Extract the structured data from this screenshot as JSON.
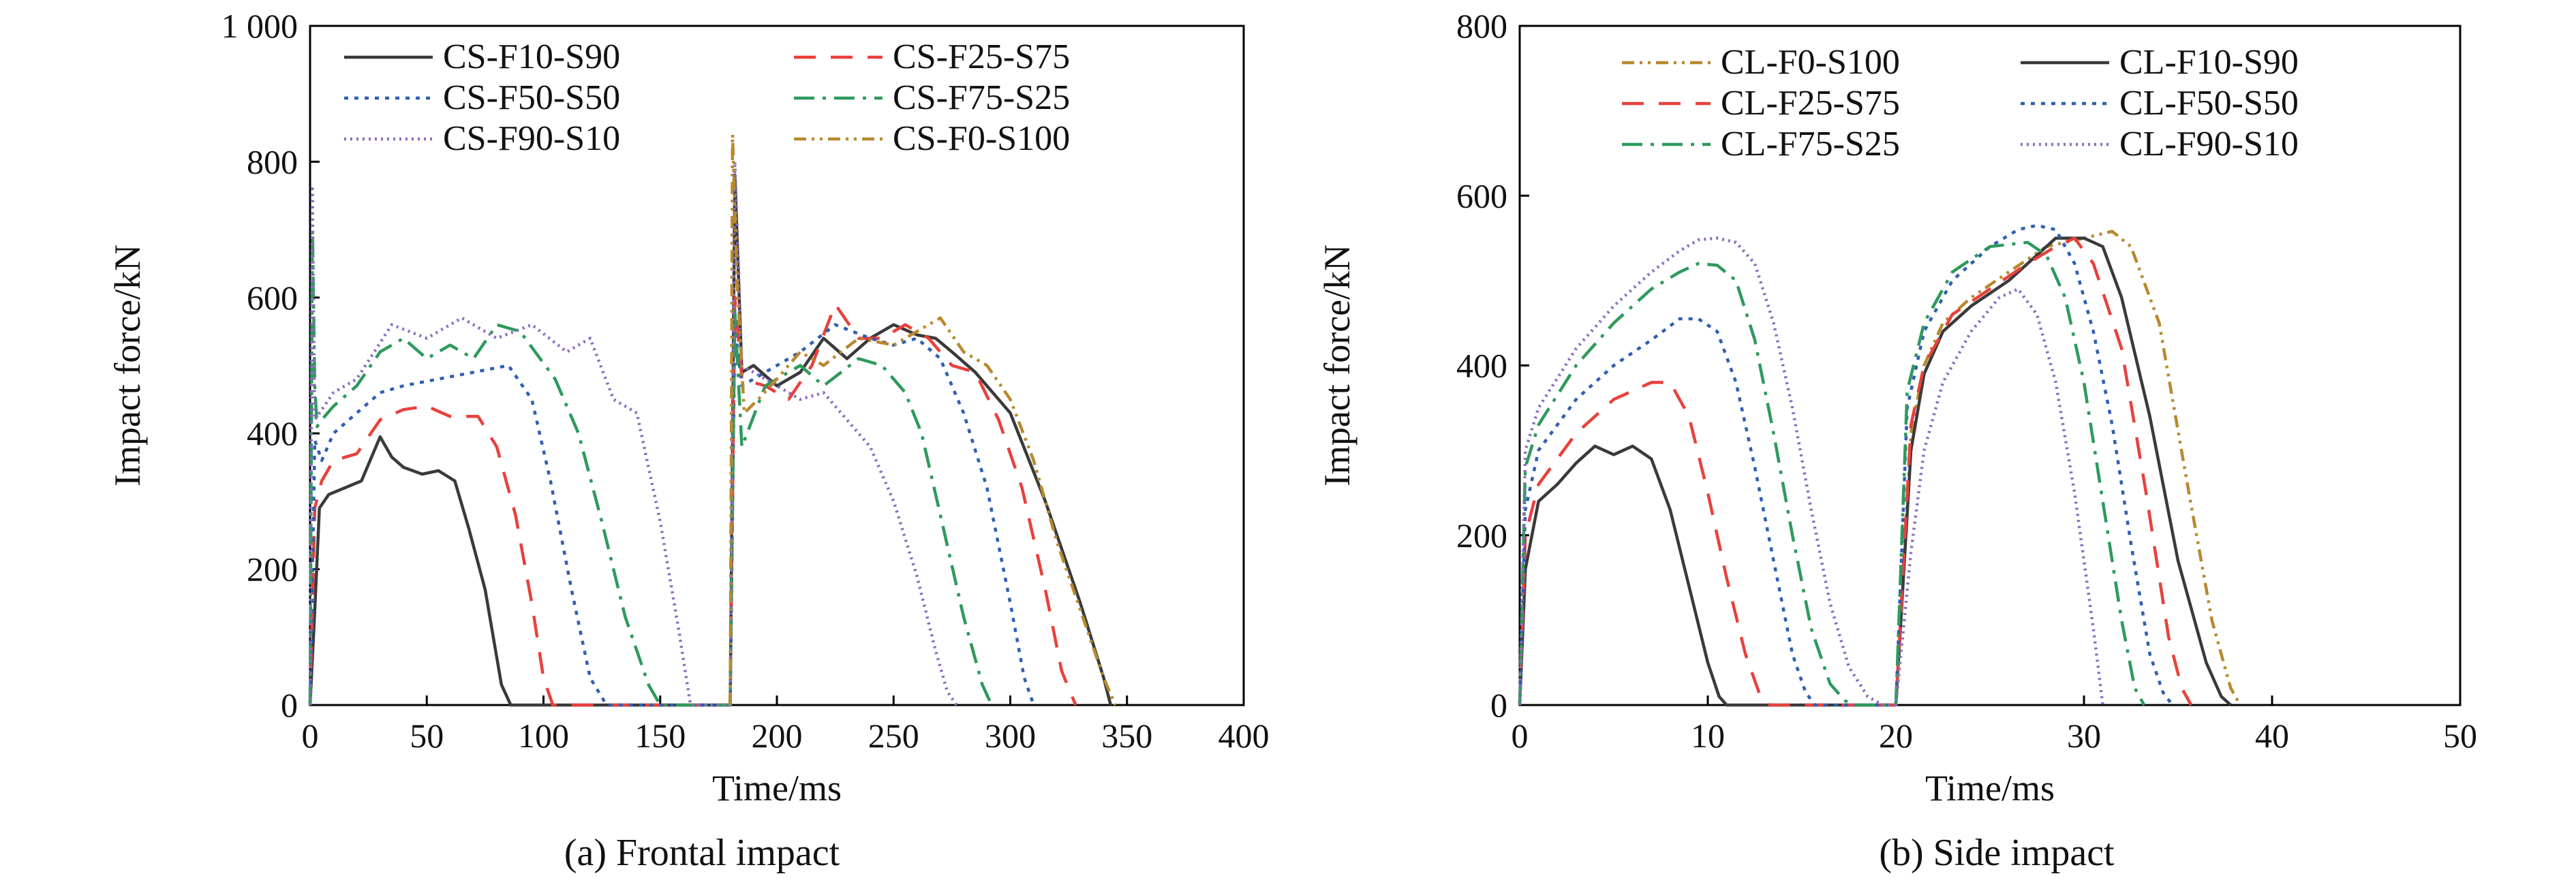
{
  "chart_data": [
    {
      "type": "line",
      "caption": "(a) Frontal impact",
      "xlabel": "Time/ms",
      "ylabel": "Impact force/kN",
      "xlim": [
        0,
        400
      ],
      "ylim": [
        0,
        1000
      ],
      "xticks": [
        0,
        50,
        100,
        150,
        200,
        250,
        300,
        350,
        400
      ],
      "yticks": [
        0,
        200,
        400,
        600,
        800,
        1000
      ],
      "ytick_labels": [
        "0",
        "200",
        "400",
        "600",
        "800",
        "1 000"
      ],
      "grid": false,
      "legend_position": "top",
      "legend_columns": 2,
      "series": [
        {
          "name": "CS-F10-S90",
          "color": "#3a3a3a",
          "dash": "solid",
          "x": [
            0,
            2,
            4,
            8,
            15,
            22,
            30,
            35,
            40,
            48,
            55,
            62,
            68,
            75,
            82,
            86,
            180,
            182,
            185,
            190,
            200,
            210,
            220,
            230,
            240,
            250,
            260,
            268,
            275,
            285,
            300,
            315,
            330,
            340,
            343
          ],
          "y": [
            0,
            140,
            290,
            310,
            320,
            330,
            395,
            365,
            350,
            340,
            345,
            330,
            260,
            170,
            30,
            0,
            0,
            780,
            490,
            500,
            470,
            490,
            540,
            510,
            540,
            560,
            545,
            540,
            520,
            490,
            430,
            300,
            150,
            40,
            0
          ]
        },
        {
          "name": "CS-F25-S75",
          "color": "#e8413c",
          "dash": "long-dash",
          "x": [
            0,
            2,
            5,
            10,
            20,
            30,
            40,
            50,
            60,
            72,
            80,
            88,
            95,
            100,
            104,
            180,
            182,
            185,
            195,
            205,
            215,
            225,
            235,
            245,
            255,
            265,
            275,
            285,
            295,
            305,
            315,
            322,
            328
          ],
          "y": [
            0,
            290,
            330,
            360,
            370,
            420,
            435,
            440,
            425,
            425,
            380,
            280,
            150,
            40,
            0,
            0,
            600,
            480,
            470,
            450,
            500,
            590,
            540,
            540,
            560,
            540,
            500,
            490,
            420,
            320,
            170,
            50,
            0
          ]
        },
        {
          "name": "CS-F50-S50",
          "color": "#2f5fb3",
          "dash": "dotted",
          "x": [
            0,
            2,
            5,
            10,
            20,
            30,
            40,
            55,
            70,
            85,
            95,
            103,
            112,
            120,
            127,
            180,
            182,
            185,
            195,
            210,
            225,
            240,
            250,
            260,
            270,
            280,
            290,
            300,
            306,
            310
          ],
          "y": [
            0,
            390,
            360,
            400,
            430,
            460,
            470,
            480,
            490,
            500,
            450,
            330,
            170,
            40,
            0,
            0,
            560,
            470,
            490,
            520,
            560,
            540,
            530,
            540,
            510,
            430,
            320,
            150,
            40,
            0
          ]
        },
        {
          "name": "CS-F75-S25",
          "color": "#2e9a5c",
          "dash": "dash-dot",
          "x": [
            0,
            1,
            2,
            3,
            5,
            10,
            20,
            30,
            40,
            50,
            60,
            70,
            80,
            90,
            105,
            115,
            125,
            135,
            145,
            150,
            180,
            182,
            185,
            195,
            210,
            220,
            235,
            245,
            255,
            262,
            270,
            280,
            288,
            292
          ],
          "y": [
            0,
            700,
            470,
            410,
            420,
            440,
            470,
            520,
            540,
            510,
            530,
            510,
            560,
            550,
            480,
            400,
            270,
            130,
            30,
            0,
            0,
            580,
            380,
            470,
            500,
            470,
            510,
            500,
            460,
            400,
            280,
            130,
            30,
            0
          ]
        },
        {
          "name": "CS-F90-S10",
          "color": "#8c6dbf",
          "dash": "fine-dot",
          "x": [
            0,
            1,
            2,
            4,
            10,
            20,
            35,
            50,
            65,
            80,
            95,
            110,
            120,
            130,
            140,
            150,
            158,
            163,
            180,
            182,
            185,
            195,
            210,
            220,
            230,
            240,
            250,
            260,
            268,
            273,
            277
          ],
          "y": [
            0,
            760,
            420,
            430,
            460,
            480,
            560,
            540,
            570,
            540,
            560,
            520,
            540,
            450,
            430,
            270,
            110,
            0,
            0,
            800,
            500,
            480,
            450,
            460,
            420,
            380,
            300,
            190,
            80,
            20,
            0
          ]
        },
        {
          "name": "CS-F0-S100",
          "color": "#b8892e",
          "dash": "dash-dot-dot",
          "x": [
            180,
            181,
            183,
            186,
            192,
            200,
            210,
            220,
            235,
            250,
            260,
            270,
            280,
            290,
            300,
            310,
            320,
            330,
            340,
            345
          ],
          "y": [
            0,
            840,
            620,
            430,
            450,
            480,
            520,
            500,
            540,
            530,
            550,
            570,
            520,
            500,
            450,
            360,
            240,
            140,
            40,
            0
          ]
        }
      ]
    },
    {
      "type": "line",
      "caption": "(b) Side impact",
      "xlabel": "Time/ms",
      "ylabel": "Impact force/kN",
      "xlim": [
        0,
        50
      ],
      "ylim": [
        0,
        800
      ],
      "xticks": [
        0,
        10,
        20,
        30,
        40,
        50
      ],
      "yticks": [
        0,
        200,
        400,
        600,
        800
      ],
      "ytick_labels": [
        "0",
        "200",
        "400",
        "600",
        "800"
      ],
      "grid": false,
      "legend_position": "top",
      "legend_columns": 2,
      "series": [
        {
          "name": "CL-F0-S100",
          "color": "#b8892e",
          "dash": "dash-dot-dot",
          "x": [
            20,
            20.8,
            21.5,
            22.5,
            24,
            26,
            28,
            30,
            31.5,
            32.5,
            34,
            35.5,
            36.8,
            37.8,
            38.3
          ],
          "y": [
            0,
            320,
            400,
            450,
            480,
            510,
            540,
            550,
            558,
            540,
            450,
            260,
            100,
            20,
            0
          ]
        },
        {
          "name": "CL-F10-S90",
          "color": "#3a3a3a",
          "dash": "solid",
          "x": [
            0,
            0.3,
            1,
            2,
            3,
            4,
            5,
            6,
            7,
            8,
            9,
            10,
            10.6,
            11,
            20,
            20.8,
            21.5,
            22.5,
            24,
            26,
            27.5,
            28.5,
            30,
            31,
            32,
            33.5,
            35,
            36.5,
            37.3,
            37.8
          ],
          "y": [
            0,
            160,
            240,
            260,
            285,
            305,
            295,
            305,
            290,
            230,
            140,
            50,
            10,
            0,
            0,
            300,
            390,
            440,
            470,
            500,
            530,
            550,
            550,
            540,
            480,
            340,
            170,
            50,
            10,
            0
          ]
        },
        {
          "name": "CL-F25-S75",
          "color": "#e8413c",
          "dash": "long-dash",
          "x": [
            0,
            0.3,
            1,
            3,
            5,
            7,
            8,
            9,
            10,
            11,
            12,
            12.8,
            13.3,
            20,
            20.8,
            21.5,
            23,
            25,
            27,
            28.5,
            29.5,
            30.5,
            32,
            33.3,
            34.5,
            35.2,
            35.7
          ],
          "y": [
            0,
            200,
            260,
            320,
            360,
            380,
            380,
            340,
            250,
            150,
            60,
            10,
            0,
            0,
            330,
            400,
            460,
            490,
            520,
            540,
            550,
            520,
            420,
            250,
            80,
            20,
            0
          ]
        },
        {
          "name": "CL-F50-S50",
          "color": "#2f5fb3",
          "dash": "dotted",
          "x": [
            0,
            0.3,
            1,
            3,
            5,
            7,
            8.5,
            9.5,
            10.5,
            11.5,
            12.5,
            13.5,
            14.5,
            15.2,
            15.7,
            20,
            20.6,
            21.5,
            23,
            25,
            26.5,
            27.5,
            28.5,
            29.5,
            30.5,
            31.5,
            32.5,
            33.5,
            34.2,
            34.7
          ],
          "y": [
            0,
            230,
            300,
            360,
            400,
            430,
            455,
            455,
            440,
            380,
            280,
            170,
            60,
            15,
            0,
            0,
            350,
            440,
            500,
            540,
            560,
            565,
            560,
            520,
            440,
            330,
            190,
            60,
            15,
            0
          ]
        },
        {
          "name": "CL-F75-S25",
          "color": "#2e9a5c",
          "dash": "dash-dot",
          "x": [
            0,
            0.3,
            1,
            3,
            5,
            7,
            8.5,
            9.5,
            10.5,
            11.5,
            12.5,
            13.5,
            14.5,
            15.5,
            16.5,
            17.3,
            17.8,
            20,
            20.6,
            21.5,
            23,
            25,
            27,
            28,
            29,
            30,
            31,
            32,
            32.7,
            33.2
          ],
          "y": [
            0,
            280,
            330,
            400,
            450,
            490,
            510,
            520,
            518,
            500,
            430,
            320,
            200,
            90,
            25,
            5,
            0,
            0,
            370,
            450,
            510,
            540,
            545,
            530,
            480,
            380,
            240,
            100,
            20,
            0
          ]
        },
        {
          "name": "CL-F90-S10",
          "color": "#8c6dbf",
          "dash": "fine-dot",
          "x": [
            0,
            0.3,
            1,
            3,
            5,
            7,
            8.5,
            9.5,
            10.5,
            11.5,
            12.5,
            13.5,
            14.5,
            15.5,
            16.5,
            17.5,
            18.5,
            19.3,
            19.8,
            20,
            20.8,
            21.5,
            22.5,
            24,
            25.5,
            26.5,
            27.5,
            28.5,
            29.5,
            30.5,
            31
          ],
          "y": [
            0,
            300,
            350,
            420,
            470,
            510,
            535,
            548,
            550,
            545,
            520,
            450,
            350,
            230,
            120,
            45,
            10,
            0,
            0,
            0,
            180,
            300,
            380,
            440,
            480,
            490,
            460,
            380,
            250,
            90,
            0
          ]
        }
      ]
    }
  ]
}
